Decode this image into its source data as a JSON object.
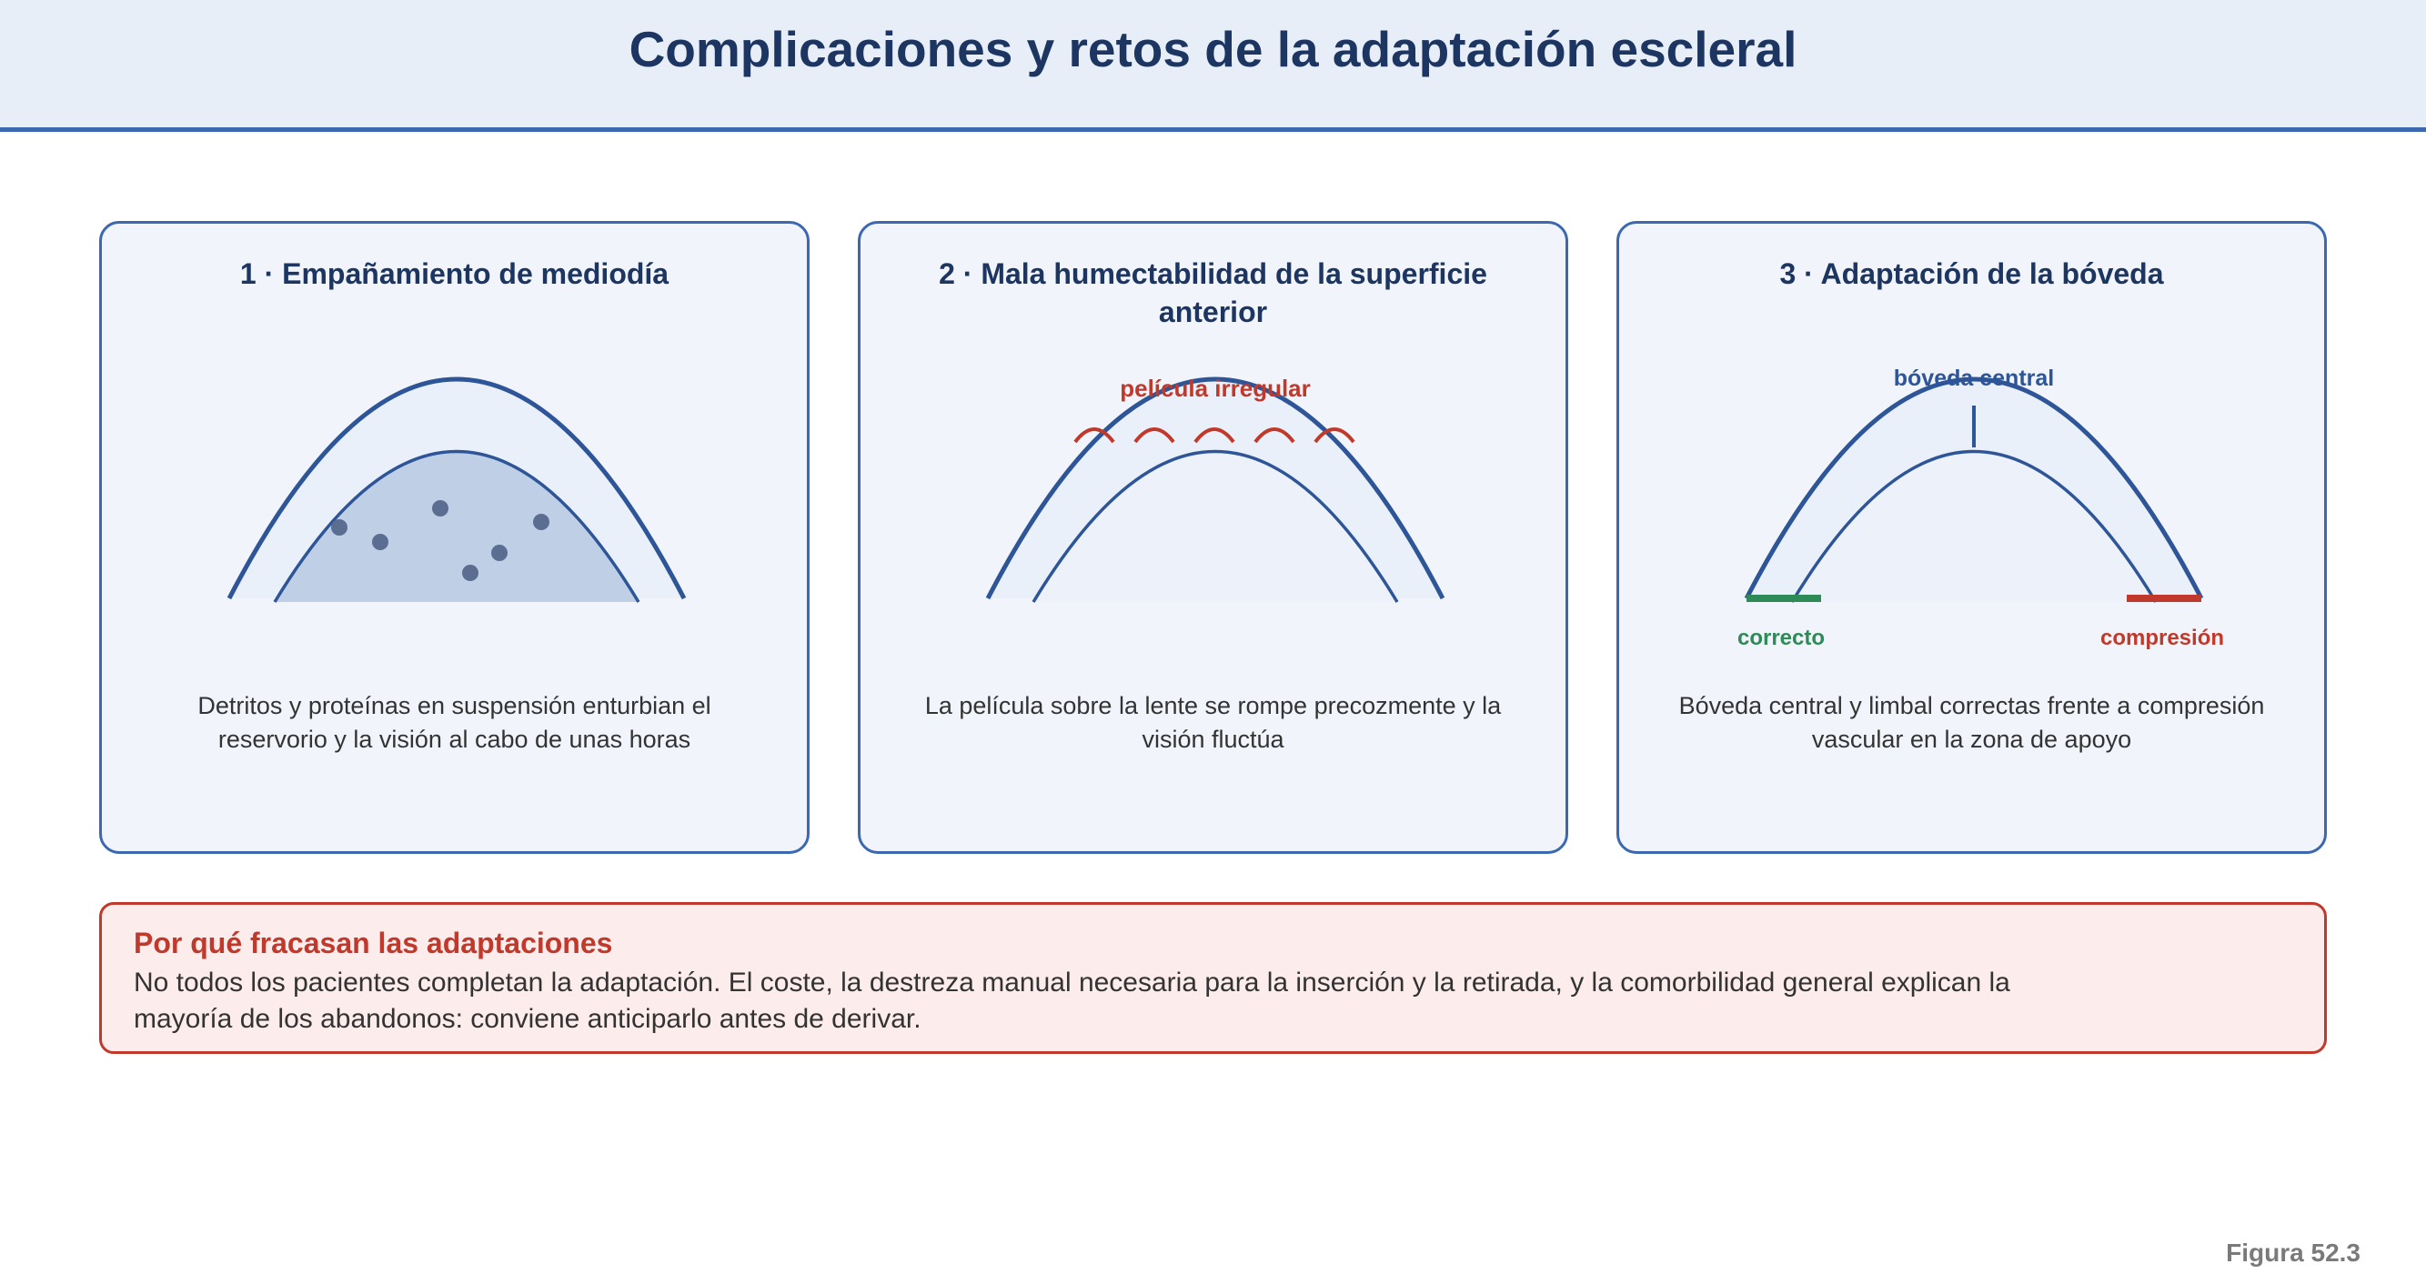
{
  "header": {
    "title": "Complicaciones y retos de la adaptación escleral"
  },
  "panels": [
    {
      "title": "1 · Empañamiento de mediodía",
      "description": "Detritos y proteínas en suspensión enturbian el reservorio y la visión al cabo de unas horas"
    },
    {
      "title": "2 · Mala humectabilidad de la superficie anterior",
      "description": "La película sobre la lente se rompe precozmente y la visión fluctúa",
      "label_film": "película irregular"
    },
    {
      "title": "3 · Adaptación de la bóveda",
      "description": "Bóveda central y limbal correctas frente a compresión vascular en la zona de apoyo",
      "label_vault": "bóveda central",
      "label_correct": "correcto",
      "label_compression": "compresión"
    }
  ],
  "warning": {
    "title": "Por qué fracasan las adaptaciones",
    "text": "No todos los pacientes completan la adaptación. El coste, la destreza manual necesaria para la inserción y la retirada, y la comorbilidad general explican la mayoría de los abandonos: conviene anticiparlo antes de derivar."
  },
  "figure_label": "Figura 52.3",
  "colors": {
    "navy": "#1c3561",
    "blue": "#2d5597",
    "red": "#c0392b",
    "green": "#2e8b57"
  }
}
